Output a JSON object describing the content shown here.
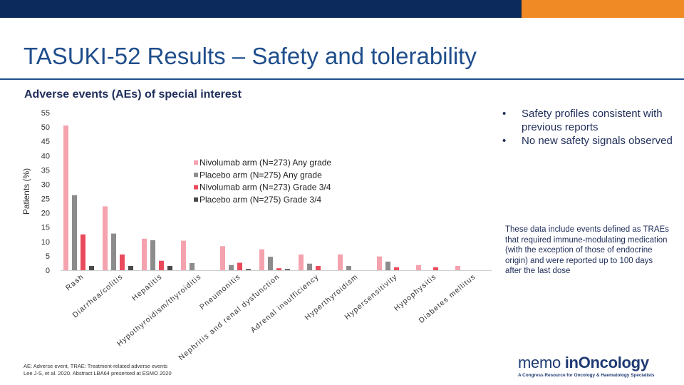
{
  "slide": {
    "title": "TASUKI-52 Results – Safety and tolerability",
    "subtitle": "Adverse events (AEs) of special interest"
  },
  "bullets": [
    "Safety profiles consistent with previous reports",
    "No new safety signals observed"
  ],
  "note": "These data include events defined as TRAEs that required immune-modulating medication (with the exception of those of endocrine origin) and were reported up to 100 days after the last dose",
  "footer": {
    "line1": "AE: Adverse event, TRAE: Treatment-related adverse events",
    "line2": "Lee J-S, et al. 2020. Abstract LBA64 presented at ESMO 2020"
  },
  "logo": {
    "brand_a": "memo",
    "brand_b": "in",
    "brand_c": "Oncology",
    "tagline": "A Congress Resource for Oncology & Haematology Specialists"
  },
  "chart_data": {
    "type": "bar",
    "title": "",
    "xlabel": "",
    "ylabel": "Patients (%)",
    "ylim": [
      0,
      55
    ],
    "yticks": [
      0,
      5,
      10,
      15,
      20,
      25,
      30,
      35,
      40,
      45,
      50,
      55
    ],
    "grid": false,
    "legend_position": "top-center",
    "categories": [
      "Rash",
      "Diarrhea/colitis",
      "Hepatitis",
      "Hypothyroidism/thyroiditis",
      "Pneumonitis",
      "Nephritis and renal dysfunction",
      "Adrenal insufficiency",
      "Hyperthyroidism",
      "Hypersensitivity",
      "Hypophysitis",
      "Diabetes mellitus"
    ],
    "series": [
      {
        "name": "Nivolumab arm (N=273) Any grade",
        "color": "#f4a3ae",
        "values": [
          50.5,
          22.3,
          11.0,
          10.3,
          8.4,
          7.3,
          5.5,
          5.5,
          4.8,
          1.8,
          1.5
        ]
      },
      {
        "name": "Placebo arm (N=275) Any grade",
        "color": "#8c8c8c",
        "values": [
          26.2,
          12.8,
          10.5,
          2.5,
          1.8,
          4.7,
          2.3,
          1.5,
          3.0,
          0.0,
          0.0
        ]
      },
      {
        "name": "Nivolumab arm (N=273) Grade 3/4",
        "color": "#e94b5c",
        "values": [
          12.5,
          5.5,
          3.3,
          0.0,
          2.6,
          0.7,
          1.5,
          0.0,
          1.0,
          1.0,
          0.0
        ]
      },
      {
        "name": "Placebo arm (N=275) Grade 3/4",
        "color": "#4a4a4a",
        "values": [
          1.5,
          1.5,
          1.5,
          0.0,
          0.4,
          0.4,
          0.0,
          0.0,
          0.0,
          0.0,
          0.0
        ]
      }
    ]
  }
}
